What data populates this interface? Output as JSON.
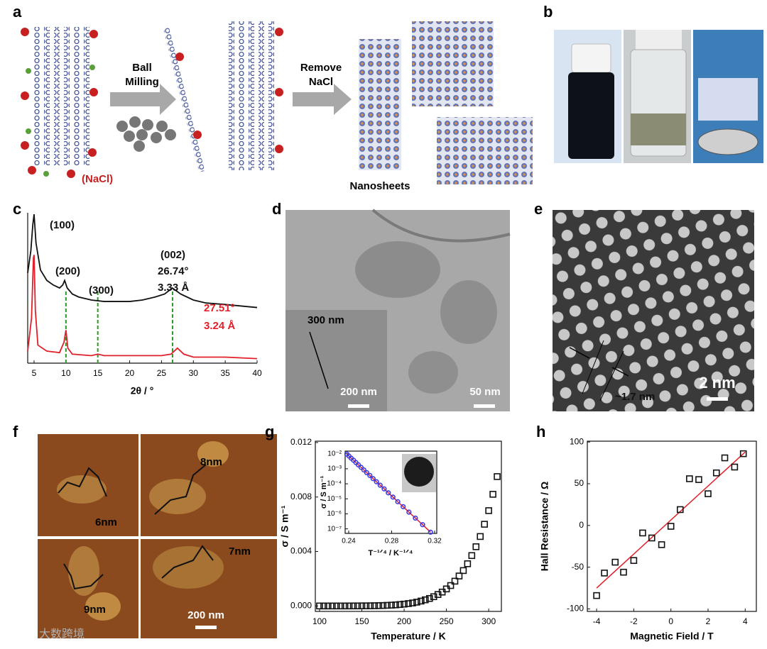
{
  "panel_labels": [
    "a",
    "b",
    "c",
    "d",
    "e",
    "f",
    "g",
    "h"
  ],
  "schematic": {
    "step1": [
      "Ball",
      "Milling"
    ],
    "step2": [
      "Remove",
      "NaCl"
    ],
    "salt": "(NaCl)",
    "product": "Nanosheets"
  },
  "tem_d": {
    "length": "300 nm",
    "inset_scale": "200 nm",
    "main_scale": "50 nm"
  },
  "hrtem_e": {
    "spacing": "~1.7 nm",
    "scale": "2 nm"
  },
  "afm_f": {
    "heights": [
      "6nm",
      "8nm",
      "9nm",
      "7nm"
    ],
    "scale": "200 nm"
  },
  "watermark": "大数跨境",
  "chart_data": [
    {
      "type": "line",
      "xlabel": "2θ / °",
      "xlim": [
        4,
        40
      ],
      "xticks": [
        5,
        10,
        15,
        20,
        25,
        30,
        35,
        40
      ],
      "ylim": [
        0,
        100
      ],
      "series": [
        {
          "color": "#111111",
          "x": [
            4,
            4.5,
            4.8,
            5,
            5.3,
            6,
            7,
            8,
            9,
            9.5,
            9.8,
            10.2,
            11,
            12,
            14,
            16,
            18,
            20,
            22,
            24,
            25.5,
            26.7,
            28,
            30,
            32,
            35,
            40
          ],
          "values": [
            60,
            75,
            92,
            99,
            80,
            62,
            55,
            52,
            50,
            52,
            55,
            50,
            46,
            44,
            42,
            41,
            41,
            41,
            42,
            44,
            46,
            50,
            46,
            42,
            40,
            39,
            37
          ]
        },
        {
          "color": "#e0202a",
          "x": [
            4,
            4.6,
            4.9,
            5,
            5.2,
            5.6,
            7,
            9,
            9.7,
            10,
            10.3,
            11,
            14,
            15,
            16,
            18,
            20,
            25,
            26.5,
            27.5,
            28.5,
            30,
            35,
            40
          ],
          "values": [
            8,
            30,
            70,
            72,
            35,
            12,
            8,
            7,
            14,
            22,
            10,
            6,
            5,
            6,
            5,
            5,
            5,
            5,
            6,
            10,
            6,
            4,
            4,
            3
          ]
        }
      ],
      "vlines": {
        "x": [
          10,
          15,
          26.74
        ],
        "color": "#2a9a2a"
      },
      "annotations": [
        {
          "text": "(100)",
          "color": "#111111"
        },
        {
          "text": "(200)",
          "color": "#111111"
        },
        {
          "text": "(300)",
          "color": "#111111"
        },
        {
          "text": "(002)",
          "color": "#111111"
        },
        {
          "text": "26.74°",
          "color": "#111111"
        },
        {
          "text": "3.33 Å",
          "color": "#111111"
        },
        {
          "text": "27.51°",
          "color": "#e0202a"
        },
        {
          "text": "3.24 Å",
          "color": "#e0202a"
        }
      ]
    },
    {
      "type": "scatter",
      "xlabel": "Temperature / K",
      "ylabel": "σ / S m⁻¹",
      "marker": "square",
      "color": "#111111",
      "xlim": [
        95,
        315
      ],
      "xticks": [
        100,
        150,
        200,
        250,
        300
      ],
      "ylim": [
        -0.0004,
        0.0121
      ],
      "yticks": [
        {
          "value": 0,
          "label": "0.000"
        },
        {
          "value": 0.004,
          "label": "0.004"
        },
        {
          "value": 0.008,
          "label": "0.008"
        },
        {
          "value": 0.012,
          "label": "0.012"
        }
      ],
      "x": [
        100,
        105,
        110,
        115,
        120,
        125,
        130,
        135,
        140,
        145,
        150,
        155,
        160,
        165,
        170,
        175,
        180,
        185,
        190,
        195,
        200,
        205,
        210,
        215,
        220,
        225,
        230,
        235,
        240,
        245,
        250,
        255,
        260,
        265,
        270,
        275,
        280,
        285,
        290,
        295,
        300,
        305,
        310
      ],
      "values": [
        6e-08,
        1.1e-07,
        1.9e-07,
        3.2e-07,
        5.2e-07,
        8.3e-07,
        1.3e-06,
        2e-06,
        3e-06,
        4.4e-06,
        6.4e-06,
        9.2e-06,
        1.3e-05,
        1.8e-05,
        2.5e-05,
        3.4e-05,
        4.6e-05,
        6.1e-05,
        8e-05,
        0.000105,
        0.000136,
        0.000175,
        0.00022,
        0.00028,
        0.00036,
        0.00045,
        0.00055,
        0.00068,
        0.00084,
        0.00102,
        0.00125,
        0.0015,
        0.00182,
        0.0022,
        0.0026,
        0.0031,
        0.0037,
        0.00435,
        0.0051,
        0.006,
        0.007,
        0.0082,
        0.0095
      ]
    },
    {
      "type": "scatter",
      "xlabel": "T⁻¹ᐟ⁴ / K⁻¹ᐟ⁴",
      "ylabel": "σ / S m⁻¹",
      "marker": "circle",
      "color": "#3a3adf",
      "line_color": "#e0202a",
      "yscale": "log",
      "xlim": [
        0.2367,
        0.322
      ],
      "xticks": [
        0.24,
        0.28,
        0.32
      ],
      "ylim": [
        5e-08,
        0.015
      ],
      "yticks": [
        {
          "value": 0.01,
          "label": "10⁻²"
        },
        {
          "value": 0.001,
          "label": "10⁻³"
        },
        {
          "value": 0.0001,
          "label": "10⁻⁴"
        },
        {
          "value": 1e-05,
          "label": "10⁻⁵"
        },
        {
          "value": 1e-06,
          "label": "10⁻⁶"
        },
        {
          "value": 1e-07,
          "label": "10⁻⁷"
        }
      ],
      "x": [
        0.3162,
        0.3088,
        0.3021,
        0.2961,
        0.2907,
        0.2857,
        0.2812,
        0.2769,
        0.273,
        0.2693,
        0.2659,
        0.2627,
        0.2597,
        0.2568,
        0.2541,
        0.2515,
        0.249,
        0.2467,
        0.2445,
        0.2423,
        0.2403,
        0.2383
      ],
      "values": [
        6e-08,
        1.9e-07,
        5.2e-07,
        1.3e-06,
        3e-06,
        6.4e-06,
        1.3e-05,
        2.5e-05,
        4.6e-05,
        8e-05,
        0.000136,
        0.00022,
        0.00036,
        0.00055,
        0.00084,
        0.00125,
        0.00182,
        0.0026,
        0.0037,
        0.0051,
        0.007,
        0.0095
      ]
    },
    {
      "type": "scatter",
      "xlabel": "Magnetic Field / T",
      "ylabel": "Hall Resistance / Ω",
      "marker": "square",
      "color": "#111111",
      "xlim": [
        -4.5,
        4.6
      ],
      "xticks": [
        -4,
        -2,
        0,
        2,
        4
      ],
      "ylim": [
        -103,
        101
      ],
      "yticks": [
        -100,
        -50,
        0,
        50,
        100
      ],
      "x": [
        -4,
        -3.58,
        -3.0,
        -2.55,
        -2.0,
        -1.52,
        -1.03,
        -0.5,
        0,
        0.5,
        1.0,
        1.5,
        2.0,
        2.45,
        2.9,
        3.43,
        3.9
      ],
      "values": [
        -84,
        -57,
        -44,
        -56,
        -42,
        -9,
        -15,
        -23,
        -1,
        19,
        56,
        55,
        38,
        63,
        81,
        70,
        86
      ],
      "fit": {
        "x": [
          -4,
          4
        ],
        "values": [
          -75,
          88
        ],
        "color": "#e0202a"
      }
    }
  ]
}
